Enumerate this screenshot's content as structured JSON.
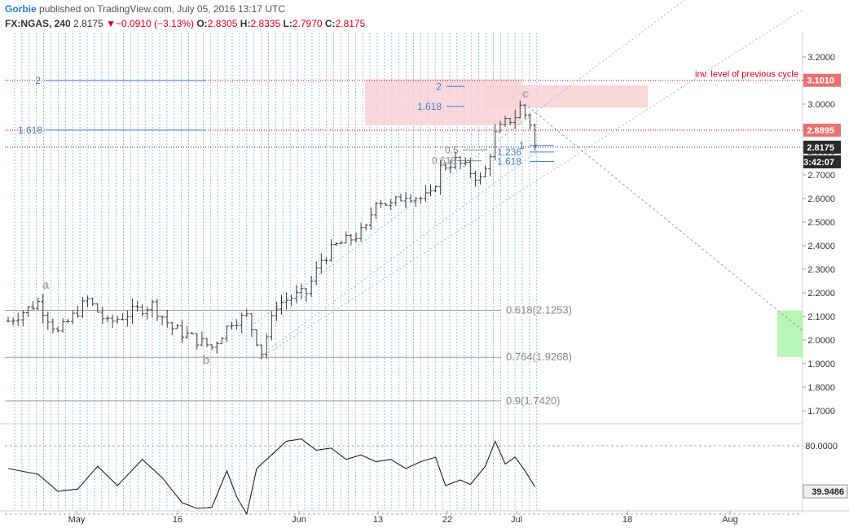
{
  "header": {
    "author": "Gorbie",
    "published_text": "published on TradingView.com, July 05, 2016 13:17 UTC",
    "symbol": "FX:NGAS, 240",
    "last_price": "2.8175",
    "change_arrow": "▼",
    "change": "−0.0910 (−3.13%)",
    "open_label": "O:",
    "open": "2.8305",
    "high_label": "H:",
    "high": "2.8335",
    "low_label": "L:",
    "low": "2.7970",
    "close_label": "C:",
    "close": "2.8175"
  },
  "colors": {
    "bar": "#3a3a3a",
    "vertical_grid": "#7fb2e5",
    "fib_blue": "#4a7fc6",
    "fib_gray": "#9a9a9a",
    "red_level": "#d0021b",
    "zone_pink": "#f8d0d4",
    "zone_green": "#b9f5b4",
    "channel": "#a9b6c8",
    "price_badge_red": "#e57373",
    "price_badge_dark": "#2a2a2a"
  },
  "chart_data": {
    "type": "ohlc",
    "instrument": "FX:NGAS",
    "timeframe": "240",
    "y_axis": {
      "ticks": [
        "3.2000",
        "3.1000",
        "3.0000",
        "2.9000",
        "2.8000",
        "2.7000",
        "2.6000",
        "2.5000",
        "2.4000",
        "2.3000",
        "2.2000",
        "2.1000",
        "2.0000",
        "1.9000",
        "1.8000",
        "1.7000"
      ],
      "range": [
        1.66,
        3.3
      ]
    },
    "x_axis": {
      "ticks": [
        "May",
        "16",
        "Jun",
        "13",
        "22",
        "Jul",
        "18",
        "Aug"
      ]
    },
    "price_path": [
      [
        0,
        2.08
      ],
      [
        6,
        2.16
      ],
      [
        10,
        2.03
      ],
      [
        16,
        2.17
      ],
      [
        20,
        2.07
      ],
      [
        25,
        2.12
      ],
      [
        29,
        2.15
      ],
      [
        33,
        2.05
      ],
      [
        37,
        2.01
      ],
      [
        41,
        1.97
      ],
      [
        45,
        2.08
      ],
      [
        48,
        2.1
      ],
      [
        51,
        1.95
      ],
      [
        54,
        2.15
      ],
      [
        57,
        2.18
      ],
      [
        60,
        2.2
      ],
      [
        63,
        2.34
      ],
      [
        66,
        2.4
      ],
      [
        69,
        2.43
      ],
      [
        72,
        2.47
      ],
      [
        74,
        2.6
      ],
      [
        77,
        2.57
      ],
      [
        80,
        2.62
      ],
      [
        83,
        2.6
      ],
      [
        85,
        2.61
      ],
      [
        87,
        2.73
      ],
      [
        90,
        2.76
      ],
      [
        92,
        2.73
      ],
      [
        95,
        2.68
      ],
      [
        96,
        2.72
      ],
      [
        98,
        2.87
      ],
      [
        100,
        2.92
      ],
      [
        102,
        2.95
      ],
      [
        103,
        2.99
      ],
      [
        105,
        2.92
      ],
      [
        106,
        2.82
      ]
    ],
    "current_price": "2.8175",
    "countdown": "3:42:07",
    "levels": {
      "inv_level_value": "3.1010",
      "inv_level_label": "inv. level of previous cycle",
      "red_level_value": "2.8895"
    },
    "fib_left": [
      {
        "label": "2",
        "value": 3.1
      },
      {
        "label": "1.618",
        "value": 2.89
      }
    ],
    "fib_top": [
      {
        "label": "2",
        "value": 3.075
      },
      {
        "label": "1.618",
        "value": 2.99
      }
    ],
    "fib_retrace": [
      {
        "label": "0.618(2.1253)",
        "value": 2.1253
      },
      {
        "label": "0.764(1.9268)",
        "value": 1.9268
      },
      {
        "label": "0.9(1.7420)",
        "value": 1.742
      }
    ],
    "fib_small": [
      {
        "label": "0.5",
        "value": 2.806,
        "color": "gray"
      },
      {
        "label": "0.618",
        "value": 2.76,
        "color": "gray"
      },
      {
        "label": "1",
        "value": 2.825,
        "color": "blue"
      },
      {
        "label": "1.236",
        "value": 2.797,
        "color": "blue"
      },
      {
        "label": "1.618",
        "value": 2.757,
        "color": "blue"
      }
    ],
    "wave_labels": [
      {
        "label": "a",
        "value": 2.235
      },
      {
        "label": "b",
        "value": 1.915
      },
      {
        "label": "c",
        "value": 3.045
      }
    ],
    "rsi": {
      "current": "39.9486",
      "ticks": [
        "80.0000"
      ],
      "path": [
        [
          0,
          60
        ],
        [
          6,
          55
        ],
        [
          10,
          40
        ],
        [
          14,
          42
        ],
        [
          18,
          62
        ],
        [
          22,
          45
        ],
        [
          27,
          68
        ],
        [
          31,
          52
        ],
        [
          35,
          30
        ],
        [
          38,
          25
        ],
        [
          41,
          26
        ],
        [
          44,
          58
        ],
        [
          46,
          35
        ],
        [
          48,
          20
        ],
        [
          50,
          60
        ],
        [
          53,
          72
        ],
        [
          56,
          84
        ],
        [
          59,
          86
        ],
        [
          62,
          76
        ],
        [
          65,
          78
        ],
        [
          68,
          68
        ],
        [
          71,
          72
        ],
        [
          74,
          66
        ],
        [
          77,
          68
        ],
        [
          80,
          60
        ],
        [
          83,
          66
        ],
        [
          86,
          70
        ],
        [
          88,
          45
        ],
        [
          91,
          50
        ],
        [
          93,
          46
        ],
        [
          96,
          62
        ],
        [
          98,
          84
        ],
        [
          100,
          64
        ],
        [
          102,
          70
        ],
        [
          104,
          58
        ],
        [
          106,
          44
        ]
      ]
    }
  }
}
